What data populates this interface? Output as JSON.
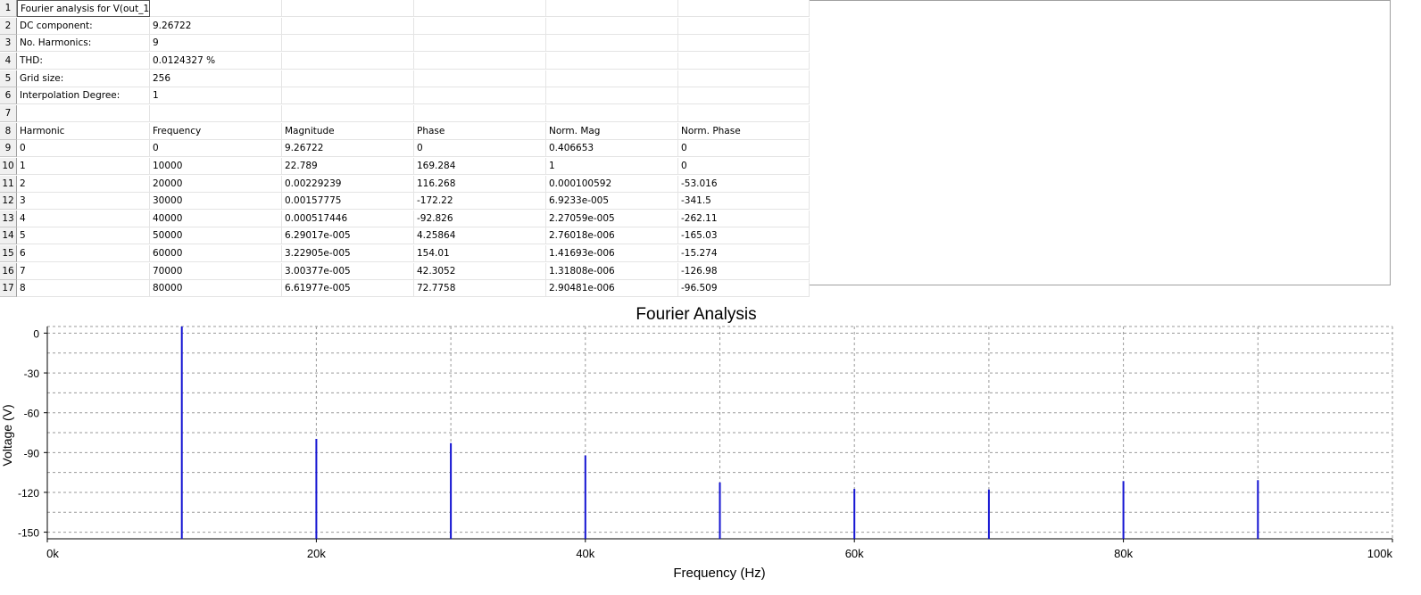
{
  "sheet": {
    "rows": [
      {
        "num": "1",
        "cells": [
          "Fourier analysis for V(out_1):",
          "",
          "",
          "",
          "",
          ""
        ]
      },
      {
        "num": "2",
        "cells": [
          "DC component:",
          "9.26722",
          "",
          "",
          "",
          ""
        ]
      },
      {
        "num": "3",
        "cells": [
          "No. Harmonics:",
          "9",
          "",
          "",
          "",
          ""
        ]
      },
      {
        "num": "4",
        "cells": [
          "THD:",
          "0.0124327 %",
          "",
          "",
          "",
          ""
        ]
      },
      {
        "num": "5",
        "cells": [
          "Grid size:",
          "256",
          "",
          "",
          "",
          ""
        ]
      },
      {
        "num": "6",
        "cells": [
          "Interpolation Degree:",
          "1",
          "",
          "",
          "",
          ""
        ]
      },
      {
        "num": "7",
        "cells": [
          "",
          "",
          "",
          "",
          "",
          ""
        ]
      },
      {
        "num": "8",
        "cells": [
          "Harmonic",
          "Frequency",
          "Magnitude",
          "Phase",
          "Norm. Mag",
          "Norm. Phase"
        ]
      },
      {
        "num": "9",
        "cells": [
          "0",
          "0",
          "9.26722",
          "0",
          "0.406653",
          "0"
        ]
      },
      {
        "num": "10",
        "cells": [
          "1",
          "10000",
          "22.789",
          "169.284",
          "1",
          "0"
        ]
      },
      {
        "num": "11",
        "cells": [
          "2",
          "20000",
          "0.00229239",
          "116.268",
          "0.000100592",
          "-53.016"
        ]
      },
      {
        "num": "12",
        "cells": [
          "3",
          "30000",
          "0.00157775",
          "-172.22",
          "6.9233e-005",
          "-341.5"
        ]
      },
      {
        "num": "13",
        "cells": [
          "4",
          "40000",
          "0.000517446",
          "-92.826",
          "2.27059e-005",
          "-262.11"
        ]
      },
      {
        "num": "14",
        "cells": [
          "5",
          "50000",
          "6.29017e-005",
          "4.25864",
          "2.76018e-006",
          "-165.03"
        ]
      },
      {
        "num": "15",
        "cells": [
          "6",
          "60000",
          "3.22905e-005",
          "154.01",
          "1.41693e-006",
          "-15.274"
        ]
      },
      {
        "num": "16",
        "cells": [
          "7",
          "70000",
          "3.00377e-005",
          "42.3052",
          "1.31808e-006",
          "-126.98"
        ]
      },
      {
        "num": "17",
        "cells": [
          "8",
          "80000",
          "6.61977e-005",
          "72.7758",
          "2.90481e-006",
          "-96.509"
        ]
      }
    ]
  },
  "chart_data": {
    "type": "bar",
    "title": "Fourier Analysis",
    "xlabel": "Frequency (Hz)",
    "ylabel": "Voltage (V)",
    "xlim": [
      0,
      100000
    ],
    "ylim": [
      -155,
      5
    ],
    "x_ticks": [
      0,
      20000,
      40000,
      60000,
      80000,
      100000
    ],
    "x_tick_labels": [
      "0k",
      "20k",
      "40k",
      "60k",
      "80k",
      "100k"
    ],
    "y_ticks": [
      0,
      -30,
      -60,
      -90,
      -120,
      -150
    ],
    "y_tick_labels": [
      "0",
      "-30",
      "-60",
      "-90",
      "-120",
      "-150"
    ],
    "grid": true,
    "bar_color": "#1414d2",
    "x": [
      10000,
      20000,
      30000,
      40000,
      50000,
      60000,
      70000,
      80000,
      90000
    ],
    "values": [
      5,
      -79.7,
      -82.9,
      -92.2,
      -112.5,
      -117.4,
      -117.9,
      -111.5,
      -110.8
    ]
  }
}
